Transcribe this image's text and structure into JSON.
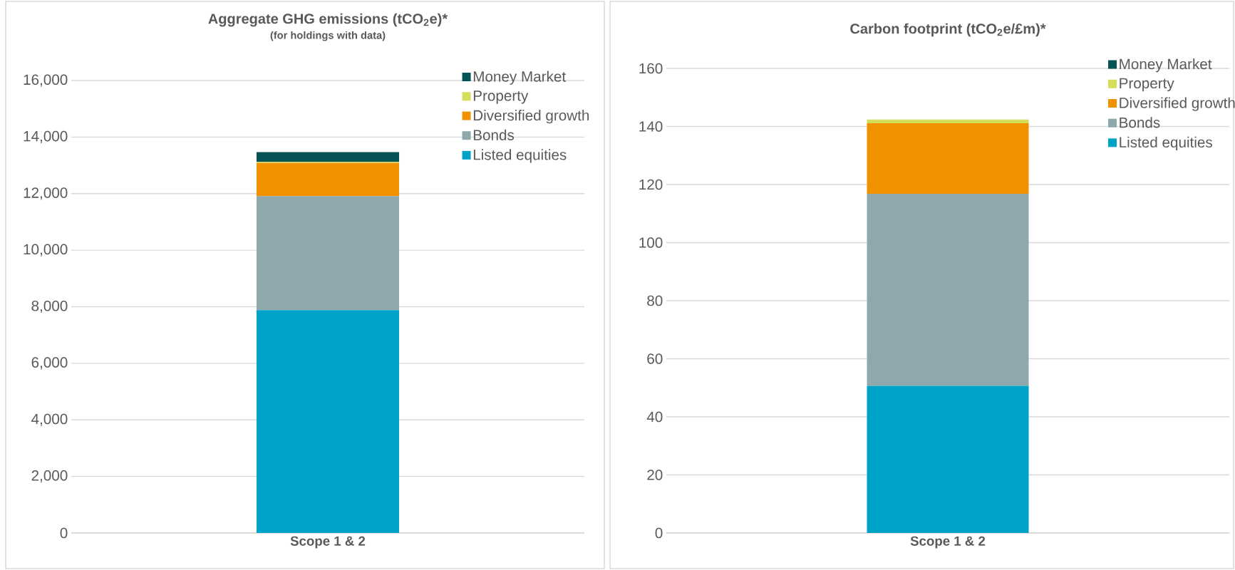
{
  "chart_data": [
    {
      "type": "bar",
      "stacked": true,
      "title": "Aggregate GHG emissions (tCO$_{2}$e)*",
      "subtitle": "(for holdings with data)",
      "categories": [
        "Scope 1 & 2"
      ],
      "series": [
        {
          "name": "Listed equities",
          "color": "#00a3c8",
          "values": [
            7880
          ]
        },
        {
          "name": "Bonds",
          "color": "#8fa8ac",
          "values": [
            4030
          ]
        },
        {
          "name": "Diversified growth",
          "color": "#f09200",
          "values": [
            1180
          ]
        },
        {
          "name": "Property",
          "color": "#d4de5a",
          "values": [
            30
          ]
        },
        {
          "name": "Money Market",
          "color": "#055355",
          "values": [
            350
          ]
        }
      ],
      "ylim": [
        0,
        16000
      ],
      "yticks": [
        0,
        {
          "value": 2000,
          "label": "2,000"
        },
        {
          "value": 4000,
          "label": "4,000"
        },
        {
          "value": 6000,
          "label": "6,000"
        },
        {
          "value": 8000,
          "label": "8,000"
        },
        {
          "value": 10000,
          "label": "10,000"
        },
        {
          "value": 12000,
          "label": "12,000"
        },
        {
          "value": 14000,
          "label": "14,000"
        },
        {
          "value": 16000,
          "label": "16,000"
        }
      ],
      "grid": "y",
      "legend": "top right"
    },
    {
      "type": "bar",
      "stacked": true,
      "title": "Carbon footprint (tCO$_{2}$e/£m)*",
      "categories": [
        "Scope 1 & 2"
      ],
      "series": [
        {
          "name": "Listed equities",
          "color": "#00a3c8",
          "values": [
            50.7
          ]
        },
        {
          "name": "Bonds",
          "color": "#8fa8ac",
          "values": [
            66.1
          ]
        },
        {
          "name": "Diversified growth",
          "color": "#f09200",
          "values": [
            24.3
          ]
        },
        {
          "name": "Property",
          "color": "#d4de5a",
          "values": [
            1.3
          ]
        },
        {
          "name": "Money Market",
          "color": "#055355",
          "values": [
            0
          ]
        }
      ],
      "ylim": [
        0,
        160
      ],
      "yticks": [
        0,
        20,
        40,
        60,
        80,
        100,
        120,
        140,
        160
      ],
      "grid": "y",
      "legend": "top right"
    }
  ]
}
